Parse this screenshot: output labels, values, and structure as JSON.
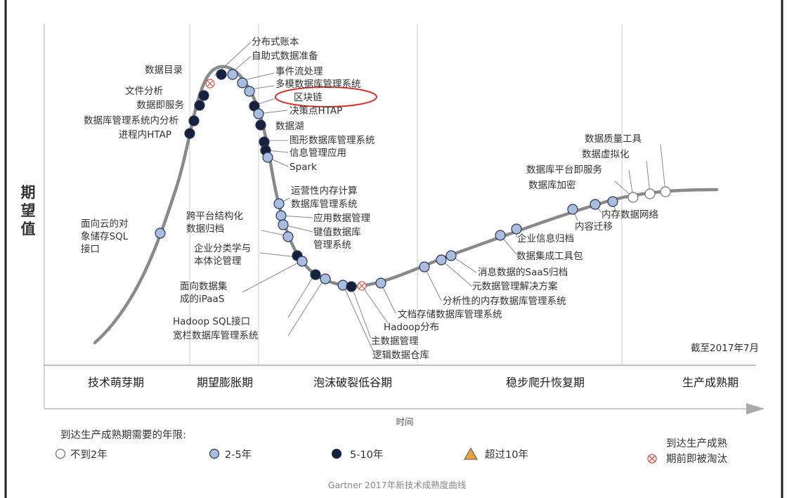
{
  "y_axis_label": [
    "期",
    "望",
    "值"
  ],
  "x_axis_label": "时间",
  "date_note": "截至2017年7月",
  "caption": "Gartner  2017年新技术成熟度曲线",
  "phases": [
    "技术萌芽期",
    "期望膨胀期",
    "泡沫破裂低谷期",
    "稳步爬升恢复期",
    "生产成熟期"
  ],
  "legend": {
    "title": "到达生产成熟期需要的年限:",
    "items": [
      {
        "id": "lt2",
        "label": "不到2年"
      },
      {
        "id": "2to5",
        "label": "2-5年"
      },
      {
        "id": "5to10",
        "label": "5-10年"
      },
      {
        "id": "gt10",
        "label": "超过10年"
      }
    ],
    "obsolete": [
      "到达生产成熟",
      "期前即被淘汰"
    ]
  },
  "colors": {
    "curve": "#8a8a8a",
    "lt2": "#ffffff",
    "2to5": "#a9bde0",
    "5to10": "#16213f",
    "gt10": "#e8a33a",
    "obsolete": "#d9534f",
    "highlight": "#d9342b"
  },
  "technologies": [
    {
      "label": "面向云的对",
      "label2": "象储存SQL",
      "label3": "接口",
      "phase": "技术萌芽期",
      "years": "2-5年"
    },
    {
      "label": "进程内HTAP",
      "phase": "期望膨胀期",
      "years": "5-10年"
    },
    {
      "label": "数据库管理系统内分析",
      "phase": "期望膨胀期",
      "years": "5-10年"
    },
    {
      "label": "数据即服务",
      "phase": "期望膨胀期",
      "years": "5-10年"
    },
    {
      "label": "文件分析",
      "phase": "期望膨胀期",
      "years": "5-10年"
    },
    {
      "label": "数据目录",
      "phase": "期望膨胀期",
      "years": "到达生产成熟期前即被淘汰"
    },
    {
      "label": "分布式账本",
      "phase": "期望膨胀期",
      "years": "5-10年"
    },
    {
      "label": "自助式数据准备",
      "phase": "期望膨胀期",
      "years": "2-5年"
    },
    {
      "label": "事件流处理",
      "phase": "期望膨胀期",
      "years": "2-5年"
    },
    {
      "label": "多模数据库管理系统",
      "phase": "期望膨胀期",
      "years": "2-5年"
    },
    {
      "label": "区块链",
      "phase": "期望膨胀期",
      "years": "5-10年"
    },
    {
      "label": "决策点HTAP",
      "phase": "期望膨胀期",
      "years": "2-5年"
    },
    {
      "label": "数据湖",
      "phase": "泡沫破裂低谷期",
      "years": "5-10年"
    },
    {
      "label": "图形数据库管理系统",
      "phase": "泡沫破裂低谷期",
      "years": "5-10年"
    },
    {
      "label": "信息管理应用",
      "phase": "泡沫破裂低谷期",
      "years": "5-10年"
    },
    {
      "label": "Spark",
      "phase": "泡沫破裂低谷期",
      "years": "2-5年"
    },
    {
      "label": "运营性内存计算",
      "label2": "数据库管理系统",
      "phase": "泡沫破裂低谷期",
      "years": "2-5年"
    },
    {
      "label": "应用数据管理",
      "phase": "泡沫破裂低谷期",
      "years": "2-5年"
    },
    {
      "label": "键值数据库",
      "label2": "管理系统",
      "phase": "泡沫破裂低谷期",
      "years": "2-5年"
    },
    {
      "label": "跨平台结构化",
      "label2": "数据归档",
      "phase": "泡沫破裂低谷期",
      "years": "2-5年"
    },
    {
      "label": "企业分类学与",
      "label2": "本体论管理",
      "phase": "泡沫破裂低谷期",
      "years": "5-10年"
    },
    {
      "label": "面向数据集",
      "label2": "成的iPaaS",
      "phase": "泡沫破裂低谷期",
      "years": "5-10年"
    },
    {
      "label": "Hadoop SQL接口",
      "label2": "宽栏数据库管理系统",
      "phase": "泡沫破裂低谷期",
      "years": "2-5年"
    },
    {
      "label": "逻辑数据仓库",
      "phase": "泡沫破裂低谷期",
      "years": "2-5年"
    },
    {
      "label": "主数据管理",
      "phase": "泡沫破裂低谷期",
      "years": "5-10年"
    },
    {
      "label": "Hadoop分布",
      "phase": "泡沫破裂低谷期",
      "years": "到达生产成熟期前即被淘汰"
    },
    {
      "label": "文档存储数据库管理系统",
      "phase": "泡沫破裂低谷期",
      "years": "2-5年"
    },
    {
      "label": "分析性的内存数据库管理系统",
      "phase": "稳步爬升恢复期",
      "years": "2-5年"
    },
    {
      "label": "元数据管理解决方案",
      "phase": "稳步爬升恢复期",
      "years": "2-5年"
    },
    {
      "label": "消息数据的SaaS归档",
      "phase": "稳步爬升恢复期",
      "years": "2-5年"
    },
    {
      "label": "数据集成工具包",
      "phase": "稳步爬升恢复期",
      "years": "2-5年"
    },
    {
      "label": "企业信息归档",
      "phase": "稳步爬升恢复期",
      "years": "2-5年"
    },
    {
      "label": "内容迁移",
      "phase": "稳步爬升恢复期",
      "years": "2-5年"
    },
    {
      "label": "内存数据网络",
      "phase": "稳步爬升恢复期",
      "years": "2-5年"
    },
    {
      "label": "数据库加密",
      "phase": "生产成熟期",
      "years": "不到2年"
    },
    {
      "label": "数据库平台即服务",
      "phase": "生产成熟期",
      "years": "不到2年"
    },
    {
      "label": "数据虚拟化",
      "phase": "生产成熟期",
      "years": "不到2年"
    },
    {
      "label": "数据质量工具",
      "phase": "生产成熟期",
      "years": "不到2年"
    }
  ]
}
